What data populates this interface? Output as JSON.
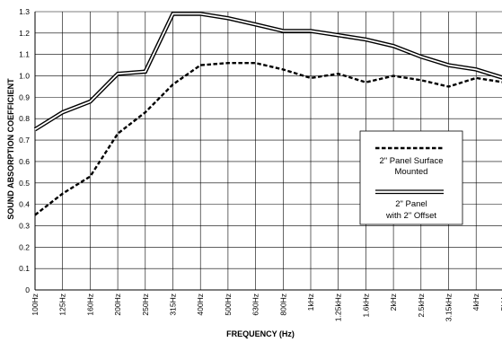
{
  "chart_data": {
    "type": "line",
    "xlabel": "FREQUENCY (Hz)",
    "ylabel": "SOUND ABSORPTION COEFFICIENT",
    "categories": [
      "100Hz",
      "125Hz",
      "160Hz",
      "200Hz",
      "250Hz",
      "315Hz",
      "400Hz",
      "500Hz",
      "630Hz",
      "800Hz",
      "1kHz",
      "1.25kHz",
      "1.6kHz",
      "2kHz",
      "2.5kHz",
      "3.15kHz",
      "4kHz",
      "5kHz"
    ],
    "y_ticks": [
      "0",
      "0.1",
      "0.2",
      "0.3",
      "0.4",
      "0.5",
      "0.6",
      "0.7",
      "0.8",
      "0.9",
      "1.0",
      "1.1",
      "1.2",
      "1.3"
    ],
    "ylim": [
      0,
      1.3
    ],
    "grid": true,
    "legend_position": "right",
    "series": [
      {
        "name": "2\" Panel Surface Mounted",
        "style": "dashed",
        "values": [
          0.35,
          0.45,
          0.53,
          0.73,
          0.83,
          0.96,
          1.05,
          1.06,
          1.06,
          1.03,
          0.99,
          1.01,
          0.97,
          1.0,
          0.98,
          0.95,
          0.99,
          0.97
        ]
      },
      {
        "name": "2\" Panel with 2\" Offset",
        "style": "double",
        "values": [
          0.75,
          0.83,
          0.88,
          1.01,
          1.02,
          1.29,
          1.29,
          1.27,
          1.24,
          1.21,
          1.21,
          1.19,
          1.17,
          1.14,
          1.09,
          1.05,
          1.03,
          0.99
        ]
      }
    ],
    "legend": {
      "entry1_line1": "2\" Panel Surface",
      "entry1_line2": "Mounted",
      "entry2_line1": "2\" Panel",
      "entry2_line2": "with 2\" Offset"
    }
  }
}
